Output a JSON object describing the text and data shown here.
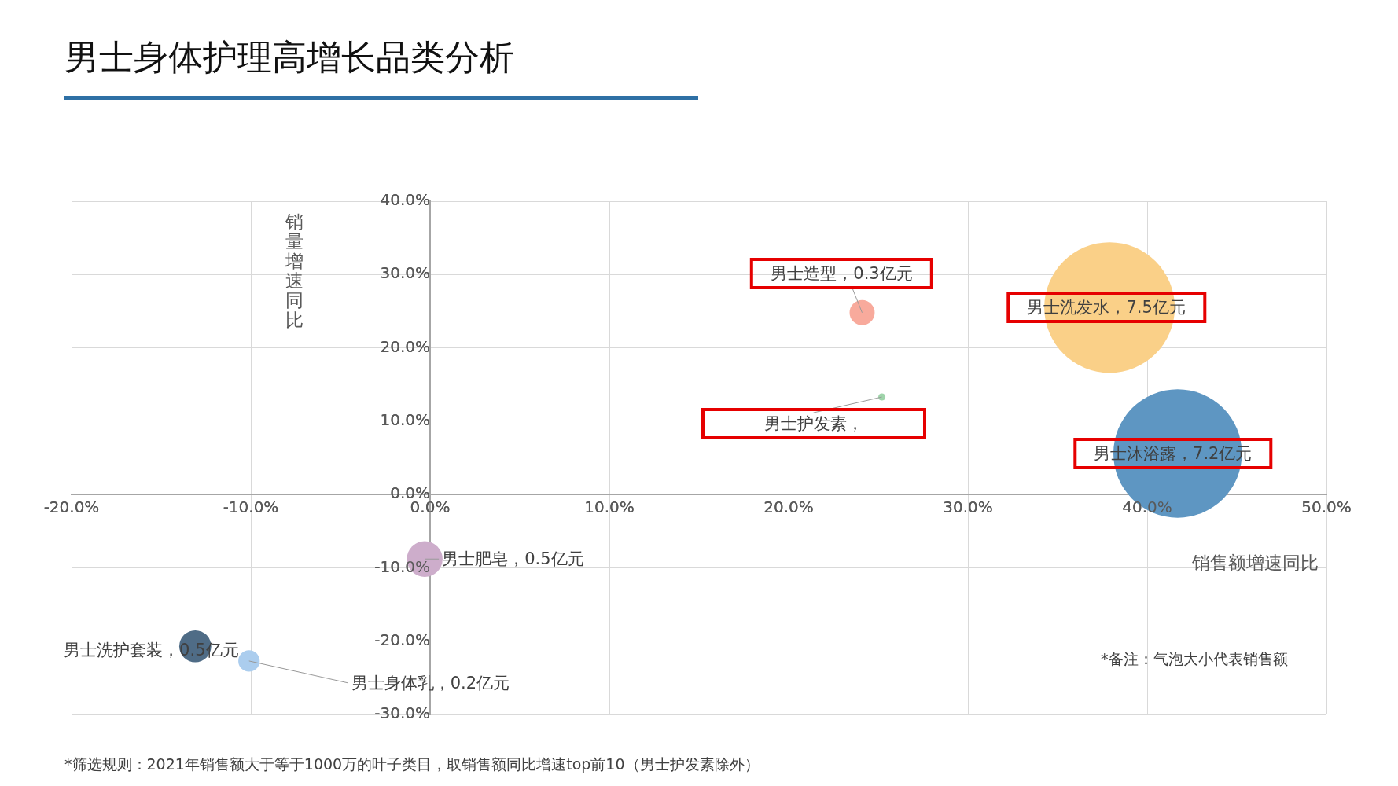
{
  "chart_data": {
    "type": "bubble",
    "title": "男士身体护理高增长品类分析",
    "xlabel": "销售额增速同比",
    "ylabel": "销量增速同比",
    "x": [
      37.9,
      41.7,
      24.1,
      25.2,
      -0.3,
      -13.1,
      -10.1
    ],
    "values": [
      25.5,
      5.6,
      24.8,
      13.3,
      -8.8,
      -20.7,
      -22.7
    ],
    "sizes": [
      1,
      0.97,
      0.037,
      0.003,
      0.075,
      0.06,
      0.027
    ],
    "colors": [
      "#fad088",
      "#5e96c2",
      "#f8aa9c",
      "#9fd4aa",
      "#cdadcb",
      "#4f6c86",
      "#abcdee"
    ],
    "xlim": [
      -20,
      50
    ],
    "xticks": [
      {
        "value": -20,
        "label": "-20.0%"
      },
      {
        "value": -10,
        "label": "-10.0%"
      },
      {
        "value": 0,
        "label": "0.0%"
      },
      {
        "value": 10,
        "label": "10.0%"
      },
      {
        "value": 20,
        "label": "20.0%"
      },
      {
        "value": 30,
        "label": "30.0%"
      },
      {
        "value": 40,
        "label": "40.0%"
      },
      {
        "value": 50,
        "label": "50.0%"
      }
    ],
    "ylim": [
      -30,
      40
    ],
    "yticks": [
      {
        "value": -30,
        "label": "-30.0%"
      },
      {
        "value": -20,
        "label": "-20.0%"
      },
      {
        "value": -10,
        "label": "-10.0%"
      },
      {
        "value": 0,
        "label": "0.0%"
      },
      {
        "value": 10,
        "label": "10.0%"
      },
      {
        "value": 20,
        "label": "20.0%"
      },
      {
        "value": 30,
        "label": "30.0%"
      },
      {
        "value": 40,
        "label": "40.0%"
      }
    ],
    "grid": true,
    "annotations": [
      {
        "text": "男士洗发水，7.5亿元",
        "x": 37.9,
        "y": 25.5
      },
      {
        "text": "男士沐浴露，7.2亿元",
        "x": 41.7,
        "y": 5.6
      },
      {
        "text": "男士造型，0.3亿元",
        "x": 24.1,
        "y": 24.8
      },
      {
        "text": "男士护发素，",
        "x": 25.2,
        "y": 13.3
      },
      {
        "text": "男士肥皂，0.5亿元",
        "x": -0.3,
        "y": -8.8
      },
      {
        "text": "男士洗护套装，0.5亿元",
        "x": -13.1,
        "y": -20.7
      },
      {
        "text": "男士身体乳，0.2亿元",
        "x": -10.1,
        "y": -22.7
      },
      "*筛选规则：2021年销售额大于等于1000万的叶子类目，取销售额同比增速top前10（男士护发素除外）",
      "*备注：气泡大小代表销售额"
    ]
  }
}
